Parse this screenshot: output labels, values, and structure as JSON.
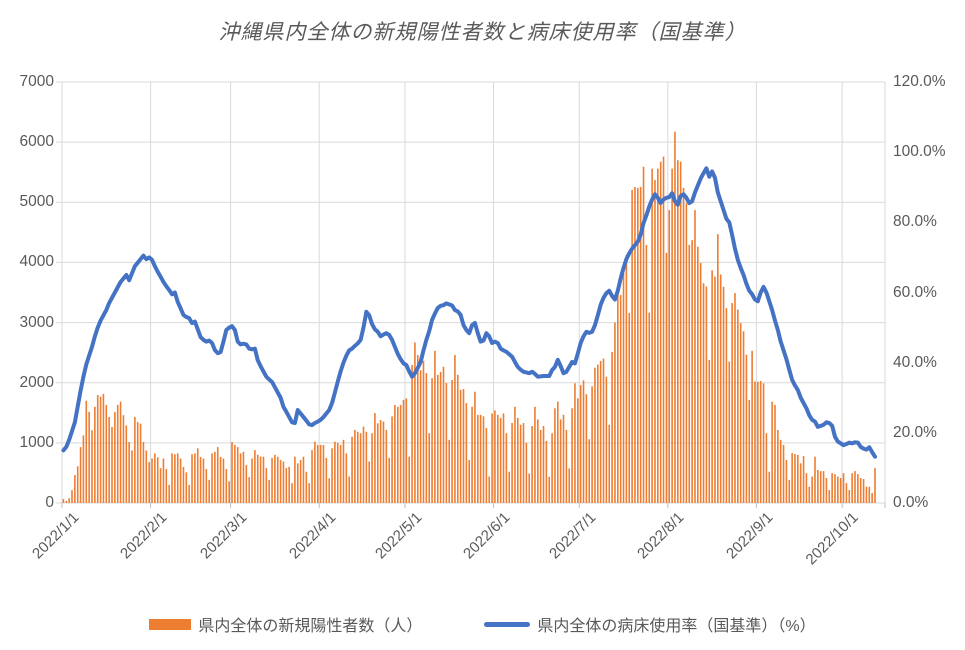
{
  "title": "沖縄県内全体の新規陽性者数と病床使用率（国基準）",
  "colors": {
    "bar": "#ED7D31",
    "line": "#4472C4",
    "gridline": "#D9D9D9",
    "axis_text": "#595959",
    "title_text": "#595959",
    "background": "#FFFFFF"
  },
  "legend": [
    {
      "label": "県内全体の新規陽性者数（人）",
      "type": "bar",
      "color": "#ED7D31"
    },
    {
      "label": "県内全体の病床使用率（国基準）（%）",
      "type": "line",
      "color": "#4472C4"
    }
  ],
  "chart_data": {
    "type": "combo",
    "title": "沖縄県内全体の新規陽性者数と病床使用率（国基準）",
    "x_start": "2022/1/1",
    "x_frequency": "daily",
    "x_axis": {
      "tick_labels": [
        "2022/1/1",
        "2022/2/1",
        "2022/3/1",
        "2022/4/1",
        "2022/5/1",
        "2022/6/1",
        "2022/7/1",
        "2022/8/1",
        "2022/9/1",
        "2022/10/1"
      ],
      "tick_day_offsets": [
        0,
        31,
        59,
        90,
        120,
        151,
        181,
        212,
        243,
        273
      ],
      "axis_total_days": 288
    },
    "left_axis": {
      "min": 0,
      "max": 7000,
      "tick_interval": 1000,
      "tick_labels": [
        "0",
        "1000",
        "2000",
        "3000",
        "4000",
        "5000",
        "6000",
        "7000"
      ]
    },
    "right_axis": {
      "min": 0,
      "max": 120,
      "tick_interval": 20,
      "tick_labels": [
        "0.0%",
        "20.0%",
        "40.0%",
        "60.0%",
        "80.0%",
        "100.0%",
        "120.0%"
      ]
    },
    "grid": true,
    "legend_position": "bottom",
    "series": [
      {
        "name": "県内全体の新規陽性者数（人）",
        "type": "bar",
        "axis": "left",
        "color": "#ED7D31",
        "unit": "人",
        "values": [
          65,
          35,
          80,
          215,
          465,
          610,
          930,
          1125,
          1700,
          1515,
          1210,
          1600,
          1795,
          1770,
          1815,
          1630,
          1430,
          1265,
          1515,
          1630,
          1685,
          1460,
          1290,
          1015,
          875,
          1430,
          1345,
          1320,
          1015,
          875,
          680,
          740,
          825,
          760,
          580,
          740,
          565,
          300,
          825,
          810,
          825,
          740,
          600,
          510,
          300,
          810,
          825,
          910,
          765,
          740,
          565,
          385,
          825,
          850,
          930,
          765,
          740,
          565,
          360,
          1015,
          965,
          930,
          825,
          850,
          630,
          430,
          740,
          880,
          800,
          770,
          770,
          580,
          385,
          750,
          800,
          770,
          715,
          690,
          580,
          600,
          330,
          770,
          660,
          715,
          770,
          520,
          330,
          880,
          1020,
          965,
          965,
          965,
          750,
          410,
          910,
          1020,
          1000,
          965,
          1050,
          825,
          440,
          1100,
          1215,
          1185,
          1160,
          1270,
          1185,
          690,
          1160,
          1495,
          1325,
          1380,
          1355,
          1215,
          750,
          1440,
          1630,
          1600,
          1630,
          1715,
          1740,
          770,
          2295,
          2670,
          2460,
          2210,
          2365,
          2160,
          1160,
          2075,
          2530,
          2130,
          2180,
          2265,
          1995,
          1050,
          2045,
          2460,
          2130,
          1880,
          1895,
          1660,
          715,
          1600,
          1850,
          1465,
          1465,
          1440,
          1245,
          440,
          1490,
          1540,
          1465,
          1415,
          1490,
          1160,
          520,
          1330,
          1600,
          1415,
          1300,
          1330,
          1000,
          490,
          1280,
          1600,
          1390,
          1215,
          1280,
          1030,
          435,
          1160,
          1575,
          1685,
          1390,
          1465,
          1215,
          575,
          1575,
          1990,
          1740,
          1960,
          2040,
          1810,
          1060,
          1940,
          2250,
          2300,
          2360,
          2400,
          2100,
          1300,
          2510,
          3000,
          3510,
          3460,
          3825,
          4125,
          3160,
          5205,
          5255,
          5240,
          5255,
          5590,
          4290,
          3165,
          5560,
          5370,
          5560,
          5675,
          5760,
          4160,
          4870,
          5560,
          6175,
          5700,
          5675,
          5240,
          4985,
          4290,
          4370,
          4870,
          4260,
          3990,
          3655,
          3600,
          2380,
          3870,
          3765,
          4470,
          3800,
          3595,
          3240,
          2350,
          3325,
          3490,
          3215,
          2990,
          2855,
          2465,
          1715,
          2530,
          2020,
          2015,
          2030,
          1990,
          1160,
          520,
          1685,
          1630,
          1215,
          1050,
          965,
          715,
          385,
          830,
          815,
          800,
          660,
          780,
          495,
          270,
          440,
          770,
          550,
          530,
          530,
          415,
          215,
          495,
          480,
          440,
          415,
          495,
          330,
          215,
          495,
          530,
          480,
          415,
          400,
          270,
          270,
          165,
          580
        ]
      },
      {
        "name": "県内全体の病床使用率（国基準）（%）",
        "type": "line",
        "axis": "right",
        "color": "#4472C4",
        "unit": "%",
        "values": [
          15,
          16,
          18,
          20.5,
          23,
          27.5,
          32,
          36,
          39.5,
          42,
          44.5,
          47.5,
          50,
          52,
          53.5,
          55,
          57,
          58.5,
          60,
          61.5,
          63,
          64,
          65,
          63.5,
          65.5,
          67.5,
          68.5,
          69.5,
          70.5,
          69.5,
          70,
          69.3,
          67.5,
          65.9,
          64.5,
          63,
          61.8,
          60.7,
          59.5,
          60,
          57.3,
          55.5,
          53.6,
          53,
          52.7,
          51.3,
          51.7,
          49.5,
          47.3,
          46.5,
          46,
          46.3,
          45.6,
          43.6,
          42.7,
          43,
          46,
          49.3,
          50,
          50.4,
          49.3,
          46,
          45.2,
          45.4,
          45.2,
          44,
          43.8,
          44,
          40.7,
          39,
          37.5,
          36,
          35.2,
          34.5,
          33,
          31.5,
          30,
          27.4,
          26,
          24.5,
          23,
          22.8,
          26.5,
          25.5,
          24.5,
          23.5,
          22.4,
          22.2,
          22.8,
          23.2,
          23.7,
          24.5,
          25.5,
          26.5,
          28.5,
          31.5,
          34.6,
          37.5,
          40,
          42,
          43.5,
          44,
          44.8,
          45.5,
          46.5,
          50,
          54.5,
          53.5,
          51,
          49.5,
          48.8,
          47.5,
          48,
          48.4,
          47.9,
          46.5,
          44.5,
          42.5,
          41,
          39.8,
          39.3,
          37.5,
          36,
          37,
          38.5,
          40.2,
          43.5,
          46.5,
          49,
          52.2,
          54,
          55.6,
          56.2,
          56.4,
          56.9,
          56.6,
          56.3,
          55,
          54.6,
          53.6,
          50.7,
          49.3,
          48.4,
          50.7,
          51.3,
          48.4,
          46,
          46.3,
          48.4,
          47.5,
          45.6,
          46,
          45.6,
          44,
          43.5,
          43.1,
          42.4,
          41.7,
          40.2,
          38.8,
          38,
          37.4,
          37.2,
          37,
          37.4,
          36.8,
          36,
          36.1,
          36.2,
          36.2,
          36.2,
          37.9,
          38.8,
          40.8,
          39,
          37,
          37.4,
          38.8,
          40.2,
          39.8,
          42.6,
          45.6,
          47.5,
          48.8,
          48.5,
          48.8,
          50.7,
          53.5,
          56.5,
          58.5,
          59.8,
          60.5,
          59,
          58,
          60.5,
          64,
          67,
          69.5,
          71.2,
          72.5,
          73.5,
          74.5,
          76.5,
          79.8,
          82,
          84.5,
          86.5,
          88,
          87,
          85.5,
          86.5,
          87,
          87.2,
          88.3,
          86,
          85,
          87.5,
          88,
          87,
          85.5,
          86,
          88.5,
          90.5,
          92.5,
          94,
          95.4,
          93,
          94.5,
          92.7,
          88.5,
          86,
          83.5,
          81,
          80,
          76.4,
          72.5,
          69.3,
          67,
          65,
          62.5,
          60.5,
          59.5,
          58,
          57.5,
          60,
          61.6,
          60,
          57.5,
          55,
          52,
          49.3,
          46,
          43.5,
          41,
          38,
          35.1,
          33.5,
          32.2,
          30,
          28.5,
          27,
          25,
          23.7,
          23.2,
          21.7,
          22,
          22.3,
          23,
          22.8,
          22,
          18.9,
          17.5,
          17,
          16.5,
          16.8,
          17.2,
          17,
          17.3,
          17.2,
          16,
          15.5,
          15.2,
          15.9,
          14.5,
          13.2
        ]
      }
    ]
  }
}
